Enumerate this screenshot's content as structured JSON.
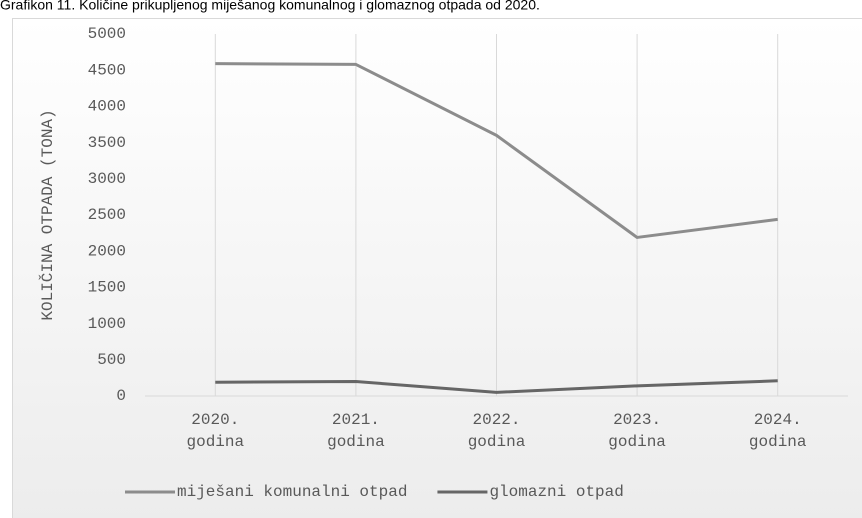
{
  "chart_data": {
    "type": "line",
    "title": "Grafikon 11. Količine prikupljenog miješanog komunalnog i glomaznog otpada od 2020.",
    "y_label": "KOLIČINA OTPADA (TONA)",
    "categories": [
      "2020. godina",
      "2021. godina",
      "2022. godina",
      "2023. godina",
      "2024. godina"
    ],
    "series": [
      {
        "name": "miješani komunalni otpad",
        "color": "#8c8c8c",
        "values": [
          4590,
          4580,
          3600,
          2190,
          2440
        ]
      },
      {
        "name": "glomazni otpad",
        "color": "#666666",
        "values": [
          190,
          200,
          50,
          140,
          210
        ]
      }
    ],
    "ylim": [
      0,
      5000
    ],
    "yticks": [
      0,
      500,
      1000,
      1500,
      2000,
      2500,
      3000,
      3500,
      4000,
      4500,
      5000
    ],
    "grid": true,
    "legend": "bottom"
  }
}
